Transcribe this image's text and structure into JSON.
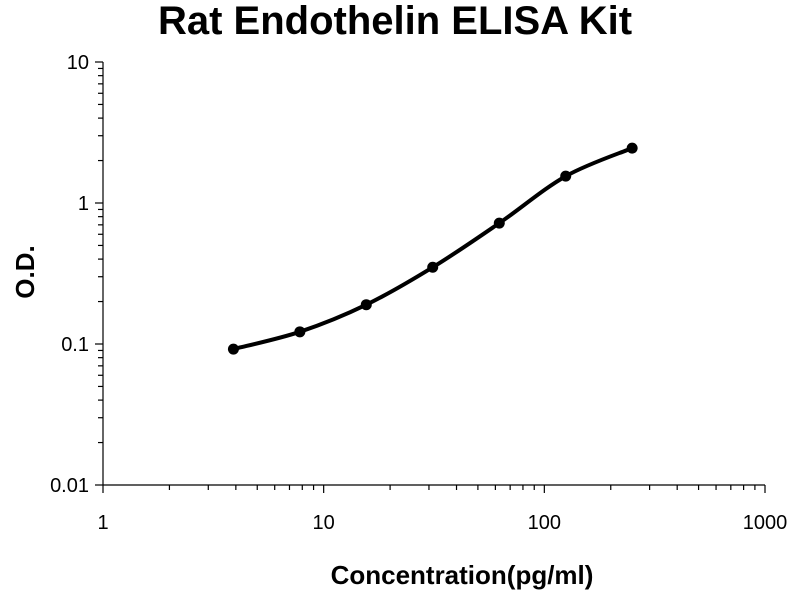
{
  "chart_data": {
    "type": "line",
    "title": "Rat Endothelin ELISA Kit",
    "xlabel": "Concentration(pg/ml)",
    "ylabel": "O.D.",
    "x_scale": "log",
    "y_scale": "log",
    "xlim": [
      1,
      1000
    ],
    "ylim": [
      0.01,
      10
    ],
    "x_ticks": [
      1,
      10,
      100,
      1000
    ],
    "x_tick_labels": [
      "1",
      "10",
      "100",
      "1000"
    ],
    "y_ticks": [
      0.01,
      0.1,
      1,
      10
    ],
    "y_tick_labels": [
      "0.01",
      "0.1",
      "1",
      "10"
    ],
    "grid": false,
    "legend": "none",
    "series": [
      {
        "color": "#000000",
        "x": [
          3.9,
          7.8,
          15.6,
          31.2,
          62.5,
          125,
          250
        ],
        "y": [
          0.092,
          0.122,
          0.19,
          0.35,
          0.72,
          1.55,
          2.45
        ]
      }
    ]
  }
}
